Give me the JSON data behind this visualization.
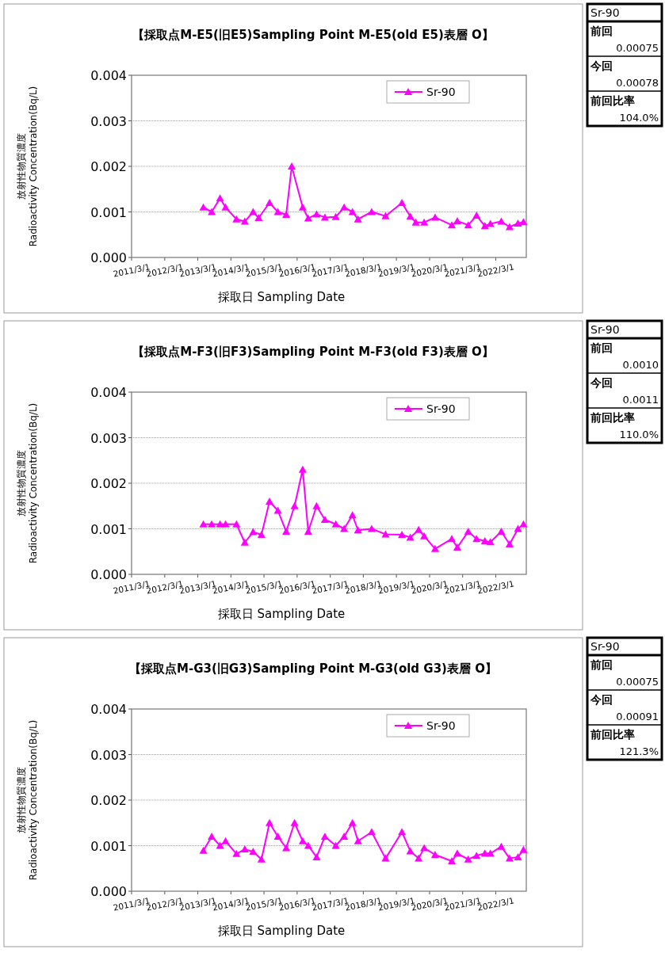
{
  "chart_data": [
    {
      "type": "line",
      "title": "【採取点M-E5(旧E5)Sampling Point M-E5(old E5)表層 O】",
      "xlabel": "採取日  Sampling Date",
      "ylabel": "放射性物質濃度\nRadioactivity Concentration(Bq/L)",
      "legend": "top right",
      "grid": "y",
      "marker": "triangle",
      "line_style": "solid",
      "x": [
        "2013-05",
        "2013-08",
        "2013-11",
        "2014-01",
        "2014-05",
        "2014-08",
        "2014-11",
        "2015-01",
        "2015-05",
        "2015-08",
        "2015-11",
        "2016-01",
        "2016-05",
        "2016-07",
        "2016-10",
        "2017-01",
        "2017-05",
        "2017-08",
        "2017-11",
        "2018-01",
        "2018-06",
        "2018-11",
        "2019-05",
        "2019-08",
        "2019-10",
        "2020-01",
        "2020-05",
        "2020-11",
        "2021-01",
        "2021-05",
        "2021-08",
        "2021-11",
        "2022-01",
        "2022-05",
        "2022-08",
        "2022-11",
        "2023-01"
      ],
      "series": [
        {
          "name": "Sr-90",
          "color": "#ff00ff",
          "values": [
            0.0011,
            0.001,
            0.0013,
            0.0011,
            0.00084,
            0.00079,
            0.001,
            0.00087,
            0.0012,
            0.001,
            0.00094,
            0.002,
            0.0011,
            0.00086,
            0.00095,
            0.00088,
            0.00089,
            0.0011,
            0.001,
            0.00084,
            0.001,
            0.00091,
            0.0012,
            0.0009,
            0.00077,
            0.00077,
            0.00088,
            0.00071,
            0.0008,
            0.00071,
            0.00092,
            0.00069,
            0.00074,
            0.00079,
            0.00067,
            0.00075,
            0.00078
          ]
        }
      ],
      "xlim": [
        "2011-03-01",
        "2023-02-01"
      ],
      "xticks": [
        {
          "value": "2011-03-01",
          "label": "2011/3/1"
        },
        {
          "value": "2012-03-01",
          "label": "2012/3/1"
        },
        {
          "value": "2013-03-01",
          "label": "2013/3/1"
        },
        {
          "value": "2014-03-01",
          "label": "2014/3/1"
        },
        {
          "value": "2015-03-01",
          "label": "2015/3/1"
        },
        {
          "value": "2016-03-01",
          "label": "2016/3/1"
        },
        {
          "value": "2017-03-01",
          "label": "2017/3/1"
        },
        {
          "value": "2018-03-01",
          "label": "2018/3/1"
        },
        {
          "value": "2019-03-01",
          "label": "2019/3/1"
        },
        {
          "value": "2020-03-01",
          "label": "2020/3/1"
        },
        {
          "value": "2021-03-01",
          "label": "2021/3/1"
        },
        {
          "value": "2022-03-01",
          "label": "2022/3/1"
        }
      ],
      "ylim": [
        0,
        0.004
      ],
      "yticks": [
        {
          "value": 0,
          "label": "0.000"
        },
        {
          "value": 0.001,
          "label": "0.001"
        },
        {
          "value": 0.002,
          "label": "0.002"
        },
        {
          "value": 0.003,
          "label": "0.003"
        },
        {
          "value": 0.004,
          "label": "0.004"
        }
      ]
    },
    {
      "type": "other",
      "title": "Sr-90",
      "annotations": [
        "前回",
        "0.00075",
        "今回",
        "0.00078",
        "前回比率",
        "104.0%"
      ]
    },
    {
      "type": "line",
      "title": "【採取点M-F3(旧F3)Sampling Point M-F3(old F3)表層 O】",
      "xlabel": "採取日  Sampling Date",
      "ylabel": "放射性物質濃度\nRadioactivity Concentration(Bq/L)",
      "legend": "top right",
      "grid": "y",
      "marker": "triangle",
      "line_style": "solid",
      "x": [
        "2013-05",
        "2013-08",
        "2013-11",
        "2014-01",
        "2014-05",
        "2014-08",
        "2014-11",
        "2015-02",
        "2015-05",
        "2015-08",
        "2015-11",
        "2016-02",
        "2016-05",
        "2016-07",
        "2016-10",
        "2017-01",
        "2017-05",
        "2017-08",
        "2017-11",
        "2018-01",
        "2018-06",
        "2018-11",
        "2019-05",
        "2019-08",
        "2019-11",
        "2020-01",
        "2020-05",
        "2020-11",
        "2021-01",
        "2021-05",
        "2021-08",
        "2021-11",
        "2022-01",
        "2022-05",
        "2022-08",
        "2022-11",
        "2023-01"
      ],
      "series": [
        {
          "name": "Sr-90",
          "color": "#ff00ff",
          "values": [
            0.0011,
            0.0011,
            0.0011,
            0.0011,
            0.0011,
            0.0007,
            0.00093,
            0.00087,
            0.0016,
            0.0014,
            0.00094,
            0.0015,
            0.0023,
            0.00094,
            0.0015,
            0.0012,
            0.0011,
            0.001,
            0.0013,
            0.00097,
            0.001,
            0.00088,
            0.00087,
            0.00081,
            0.00098,
            0.00084,
            0.00056,
            0.00078,
            0.00059,
            0.00094,
            0.00078,
            0.00073,
            0.00071,
            0.00094,
            0.00066,
            0.001,
            0.0011
          ]
        }
      ],
      "xlim": [
        "2011-03-01",
        "2023-02-01"
      ],
      "xticks": [
        {
          "value": "2011-03-01",
          "label": "2011/3/1"
        },
        {
          "value": "2012-03-01",
          "label": "2012/3/1"
        },
        {
          "value": "2013-03-01",
          "label": "2013/3/1"
        },
        {
          "value": "2014-03-01",
          "label": "2014/3/1"
        },
        {
          "value": "2015-03-01",
          "label": "2015/3/1"
        },
        {
          "value": "2016-03-01",
          "label": "2016/3/1"
        },
        {
          "value": "2017-03-01",
          "label": "2017/3/1"
        },
        {
          "value": "2018-03-01",
          "label": "2018/3/1"
        },
        {
          "value": "2019-03-01",
          "label": "2019/3/1"
        },
        {
          "value": "2020-03-01",
          "label": "2020/3/1"
        },
        {
          "value": "2021-03-01",
          "label": "2021/3/1"
        },
        {
          "value": "2022-03-01",
          "label": "2022/3/1"
        }
      ],
      "ylim": [
        0,
        0.004
      ],
      "yticks": [
        {
          "value": 0,
          "label": "0.000"
        },
        {
          "value": 0.001,
          "label": "0.001"
        },
        {
          "value": 0.002,
          "label": "0.002"
        },
        {
          "value": 0.003,
          "label": "0.003"
        },
        {
          "value": 0.004,
          "label": "0.004"
        }
      ]
    },
    {
      "type": "other",
      "title": "Sr-90",
      "annotations": [
        "前回",
        "0.0010",
        "今回",
        "0.0011",
        "前回比率",
        "110.0%"
      ]
    },
    {
      "type": "line",
      "title": "【採取点M-G3(旧G3)Sampling Point M-G3(old G3)表層 O】",
      "xlabel": "採取日  Sampling Date",
      "ylabel": "放射性物質濃度\nRadioactivity Concentration(Bq/L)",
      "legend": "top right",
      "grid": "y",
      "marker": "triangle",
      "line_style": "solid",
      "x": [
        "2013-05",
        "2013-08",
        "2013-11",
        "2014-01",
        "2014-05",
        "2014-08",
        "2014-11",
        "2015-02",
        "2015-05",
        "2015-08",
        "2015-11",
        "2016-02",
        "2016-05",
        "2016-07",
        "2016-10",
        "2017-01",
        "2017-05",
        "2017-08",
        "2017-11",
        "2018-01",
        "2018-06",
        "2018-11",
        "2019-05",
        "2019-08",
        "2019-11",
        "2020-01",
        "2020-05",
        "2020-11",
        "2021-01",
        "2021-05",
        "2021-08",
        "2021-11",
        "2022-01",
        "2022-05",
        "2022-08",
        "2022-11",
        "2023-01"
      ],
      "series": [
        {
          "name": "Sr-90",
          "color": "#ff00ff",
          "values": [
            0.00089,
            0.0012,
            0.001,
            0.0011,
            0.00082,
            0.00092,
            0.00087,
            0.0007,
            0.0015,
            0.0012,
            0.00095,
            0.0015,
            0.0011,
            0.001,
            0.00075,
            0.0012,
            0.001,
            0.0012,
            0.0015,
            0.0011,
            0.0013,
            0.00072,
            0.0013,
            0.00088,
            0.00072,
            0.00095,
            0.0008,
            0.00066,
            0.00083,
            0.0007,
            0.00078,
            0.00083,
            0.00083,
            0.00098,
            0.00072,
            0.00075,
            0.00091
          ]
        }
      ],
      "xlim": [
        "2011-03-01",
        "2023-02-01"
      ],
      "xticks": [
        {
          "value": "2011-03-01",
          "label": "2011/3/1"
        },
        {
          "value": "2012-03-01",
          "label": "2012/3/1"
        },
        {
          "value": "2013-03-01",
          "label": "2013/3/1"
        },
        {
          "value": "2014-03-01",
          "label": "2014/3/1"
        },
        {
          "value": "2015-03-01",
          "label": "2015/3/1"
        },
        {
          "value": "2016-03-01",
          "label": "2016/3/1"
        },
        {
          "value": "2017-03-01",
          "label": "2017/3/1"
        },
        {
          "value": "2018-03-01",
          "label": "2018/3/1"
        },
        {
          "value": "2019-03-01",
          "label": "2019/3/1"
        },
        {
          "value": "2020-03-01",
          "label": "2020/3/1"
        },
        {
          "value": "2021-03-01",
          "label": "2021/3/1"
        },
        {
          "value": "2022-03-01",
          "label": "2022/3/1"
        }
      ],
      "ylim": [
        0,
        0.004
      ],
      "yticks": [
        {
          "value": 0,
          "label": "0.000"
        },
        {
          "value": 0.001,
          "label": "0.001"
        },
        {
          "value": 0.002,
          "label": "0.002"
        },
        {
          "value": 0.003,
          "label": "0.003"
        },
        {
          "value": 0.004,
          "label": "0.004"
        }
      ]
    },
    {
      "type": "other",
      "title": "Sr-90",
      "annotations": [
        "前回",
        "0.00075",
        "今回",
        "0.00091",
        "前回比率",
        "121.3%"
      ]
    }
  ]
}
